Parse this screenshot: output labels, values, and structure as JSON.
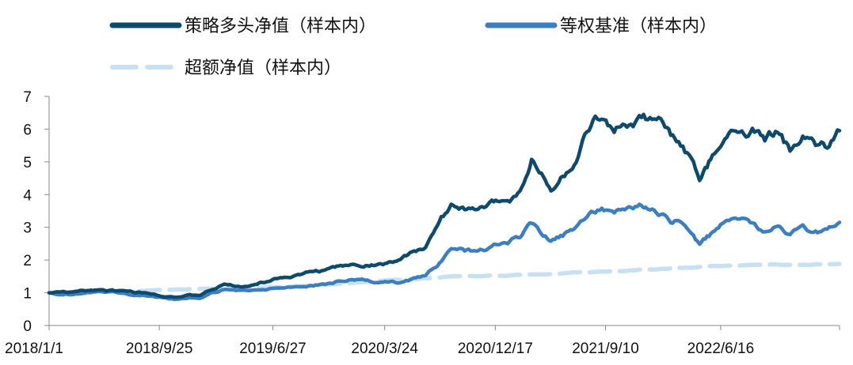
{
  "chart_data": {
    "type": "line",
    "xlabel": "",
    "ylabel": "",
    "ylim": [
      0,
      7
    ],
    "yticks": [
      0,
      1,
      2,
      3,
      4,
      5,
      6,
      7
    ],
    "x_tick_labels": [
      "2018/1/1",
      "2018/9/25",
      "2019/6/27",
      "2020/3/24",
      "2020/12/17",
      "2021/9/10",
      "2022/6/16"
    ],
    "x_range": [
      "2018/1/1",
      "2023/3/31"
    ],
    "grid": false,
    "legend_position": "top",
    "series": [
      {
        "name": "策略多头净值（样本内）",
        "color": "#0d4a6b",
        "style": "solid",
        "x": [
          "2018/1/1",
          "2018/3/1",
          "2018/5/1",
          "2018/7/1",
          "2018/9/1",
          "2018/11/1",
          "2019/1/1",
          "2019/3/1",
          "2019/5/1",
          "2019/7/1",
          "2019/9/1",
          "2019/11/1",
          "2020/1/1",
          "2020/3/1",
          "2020/5/1",
          "2020/7/1",
          "2020/9/1",
          "2020/11/1",
          "2021/1/1",
          "2021/2/15",
          "2021/3/15",
          "2021/5/1",
          "2021/7/1",
          "2021/8/1",
          "2021/9/1",
          "2021/10/1",
          "2021/11/1",
          "2021/12/1",
          "2022/1/1",
          "2022/2/1",
          "2022/3/1",
          "2022/4/1",
          "2022/4/26",
          "2022/6/1",
          "2022/7/1",
          "2022/8/1",
          "2022/9/1",
          "2022/10/1",
          "2022/11/1",
          "2022/12/1",
          "2023/1/1",
          "2023/2/1",
          "2023/3/1",
          "2023/3/31"
        ],
        "values": [
          1.0,
          1.02,
          1.1,
          1.05,
          0.98,
          0.88,
          0.92,
          1.25,
          1.2,
          1.45,
          1.55,
          1.7,
          1.85,
          1.85,
          2.0,
          2.4,
          3.7,
          3.5,
          3.8,
          4.1,
          5.1,
          4.1,
          5.0,
          5.9,
          6.2,
          5.8,
          6.0,
          6.4,
          6.3,
          6.0,
          5.6,
          5.2,
          4.4,
          5.2,
          5.7,
          5.95,
          6.05,
          5.6,
          5.9,
          5.3,
          5.9,
          5.5,
          5.4,
          5.95
        ]
      },
      {
        "name": "等权基准（样本内）",
        "color": "#3b7ec2",
        "style": "solid",
        "x": [
          "2018/1/1",
          "2018/3/1",
          "2018/5/1",
          "2018/7/1",
          "2018/9/1",
          "2018/11/1",
          "2019/1/1",
          "2019/3/1",
          "2019/5/1",
          "2019/7/1",
          "2019/9/1",
          "2019/11/1",
          "2020/1/1",
          "2020/3/1",
          "2020/5/1",
          "2020/7/1",
          "2020/9/1",
          "2020/11/1",
          "2021/1/1",
          "2021/2/15",
          "2021/3/15",
          "2021/5/1",
          "2021/7/1",
          "2021/8/1",
          "2021/9/1",
          "2021/10/1",
          "2021/11/1",
          "2021/12/1",
          "2022/1/1",
          "2022/2/1",
          "2022/3/1",
          "2022/4/1",
          "2022/4/26",
          "2022/6/1",
          "2022/7/1",
          "2022/8/1",
          "2022/9/1",
          "2022/10/1",
          "2022/11/1",
          "2022/12/1",
          "2023/1/1",
          "2023/2/1",
          "2023/3/1",
          "2023/3/31"
        ],
        "values": [
          1.0,
          0.95,
          1.05,
          1.0,
          0.9,
          0.8,
          0.82,
          1.1,
          1.05,
          1.15,
          1.18,
          1.25,
          1.4,
          1.3,
          1.3,
          1.5,
          2.3,
          2.25,
          2.5,
          2.7,
          3.1,
          2.6,
          3.0,
          3.4,
          3.6,
          3.4,
          3.6,
          3.75,
          3.6,
          3.4,
          3.2,
          2.9,
          2.5,
          2.9,
          3.2,
          3.25,
          3.15,
          2.9,
          3.0,
          2.8,
          3.1,
          2.95,
          2.95,
          3.15
        ]
      },
      {
        "name": "超额净值（样本内）",
        "color": "#c7e1f3",
        "style": "dashed",
        "x": [
          "2018/1/1",
          "2018/6/1",
          "2018/11/1",
          "2019/3/1",
          "2019/9/1",
          "2020/3/1",
          "2020/9/1",
          "2021/3/1",
          "2021/9/1",
          "2022/3/1",
          "2022/9/1",
          "2023/3/31"
        ],
        "values": [
          1.0,
          1.04,
          1.1,
          1.12,
          1.2,
          1.35,
          1.5,
          1.55,
          1.65,
          1.75,
          1.85,
          1.88
        ]
      }
    ]
  }
}
